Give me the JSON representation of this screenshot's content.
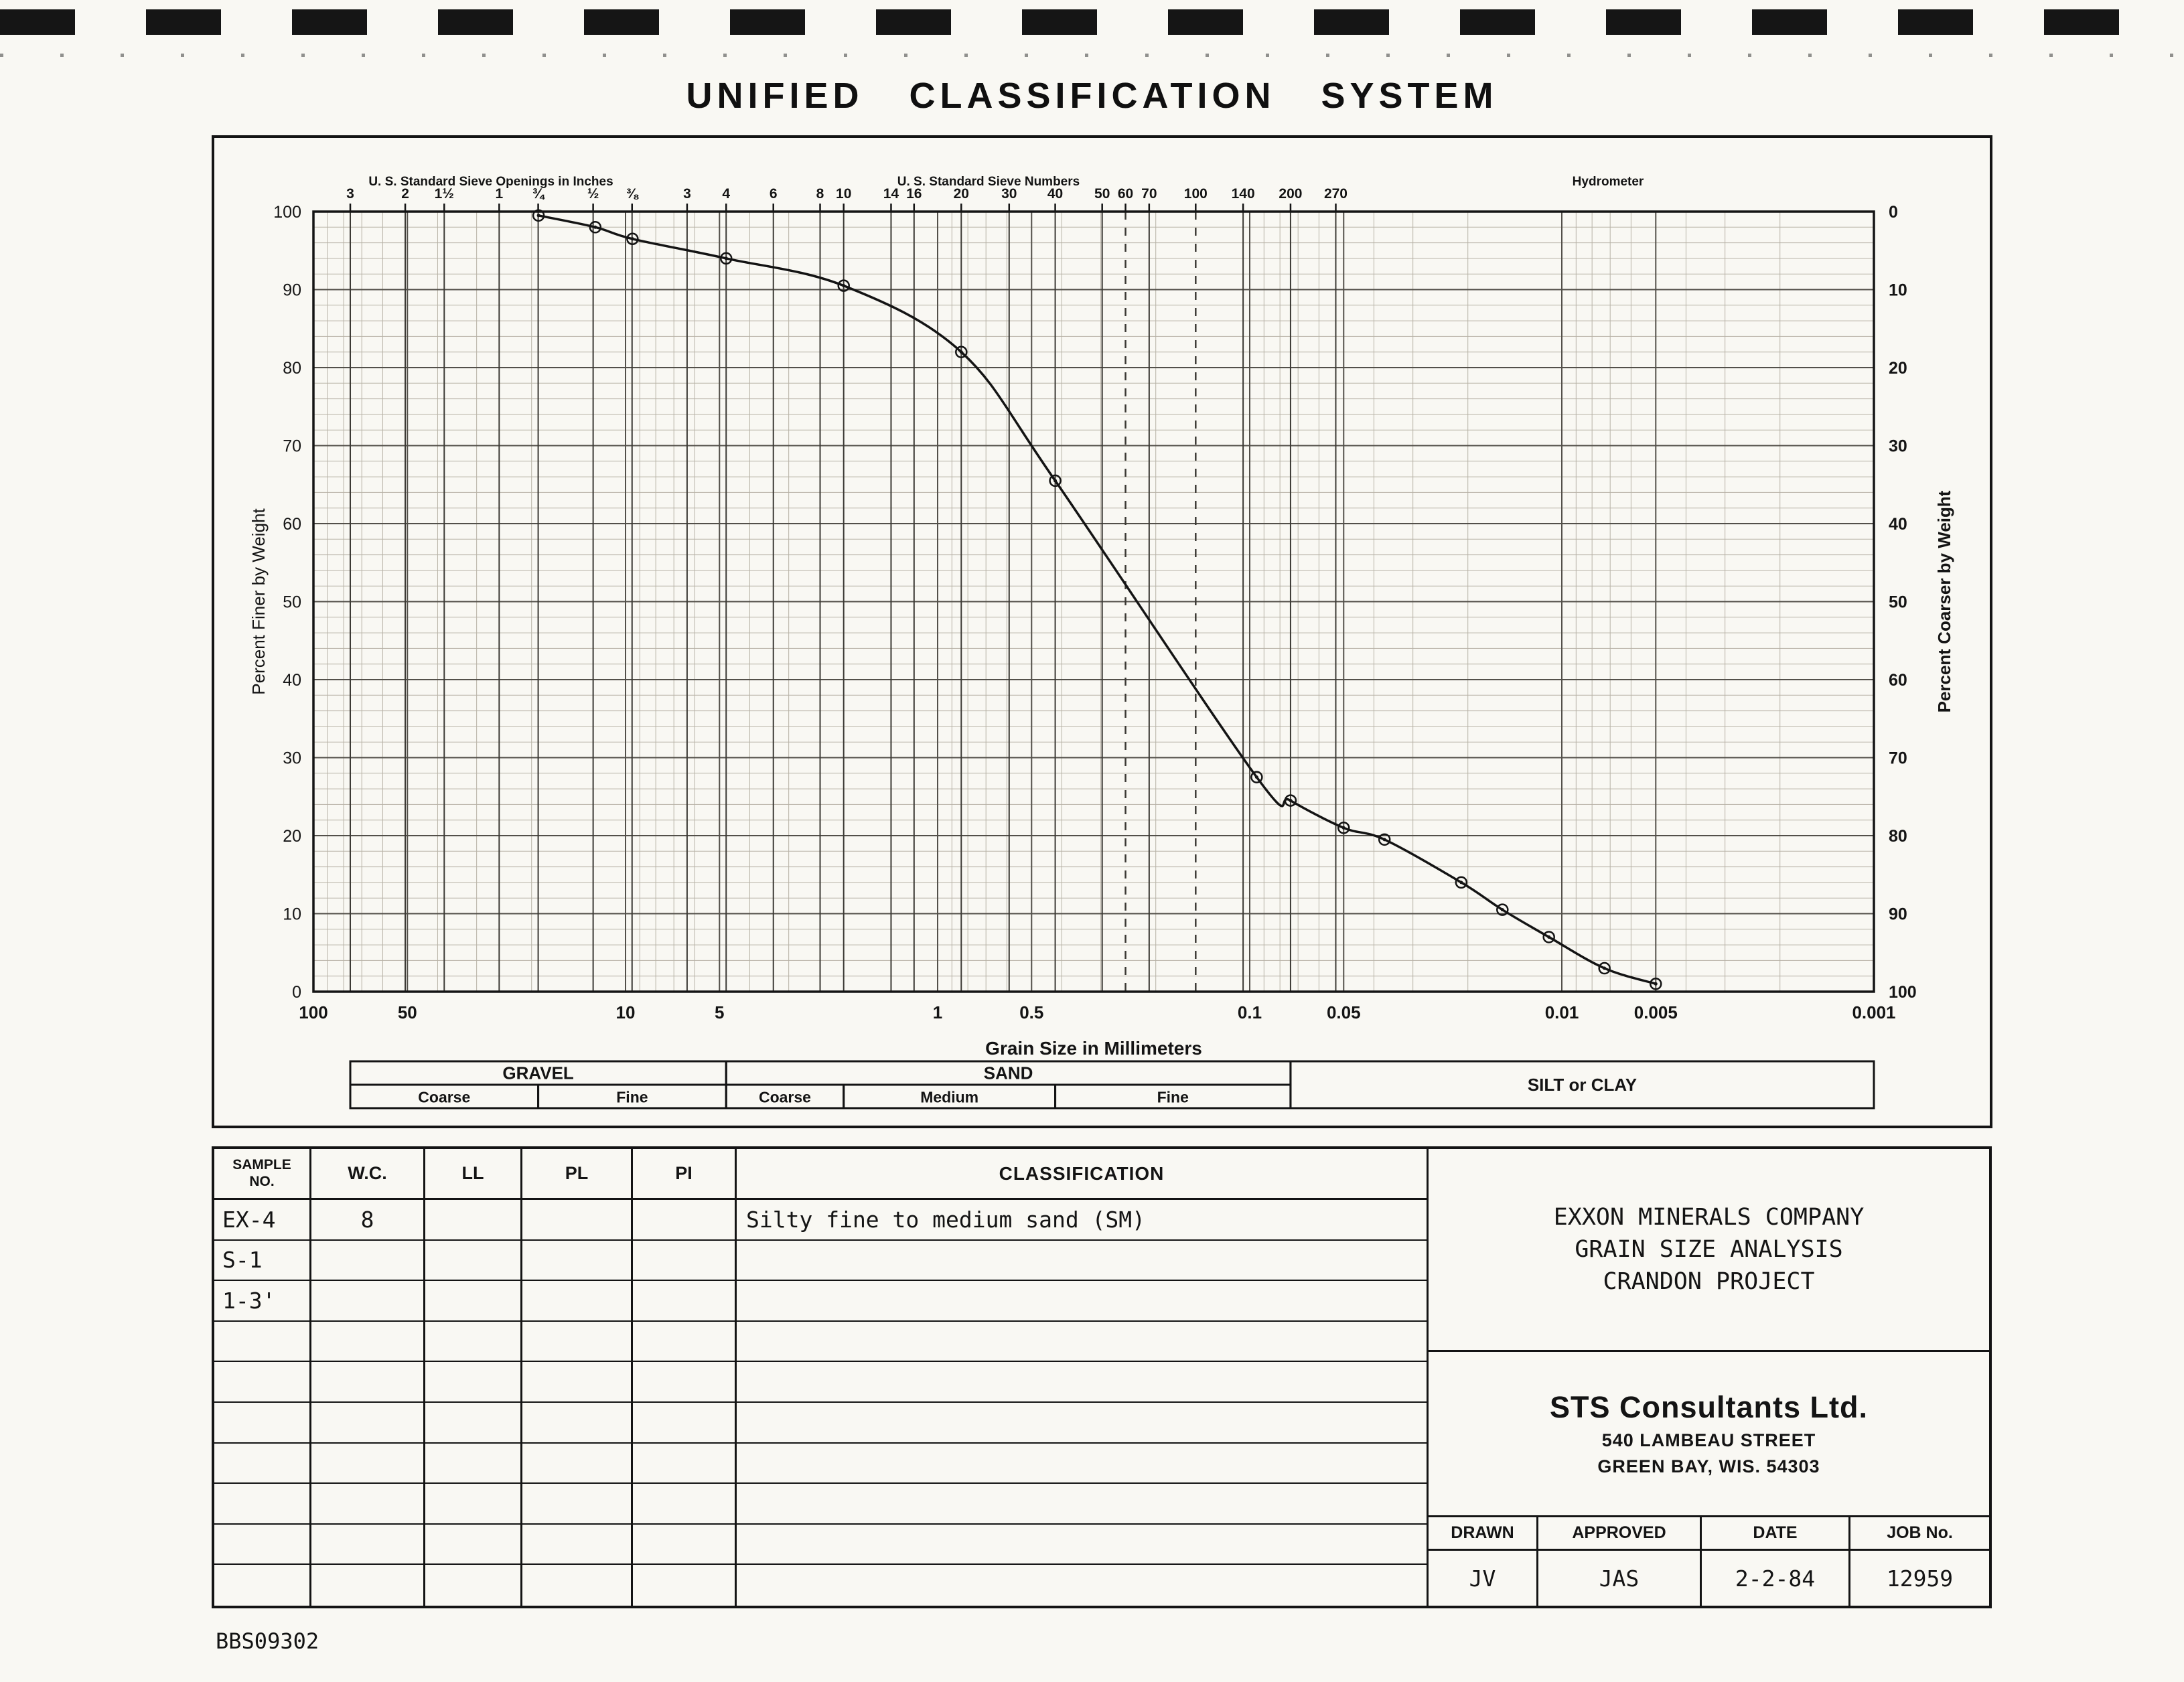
{
  "title": "UNIFIED CLASSIFICATION SYSTEM",
  "footer_code": "BBS09302",
  "chart_data": {
    "type": "line",
    "x_scale": "log",
    "xlim": [
      100,
      0.001
    ],
    "ylim": [
      0,
      100
    ],
    "grid": "on",
    "xlabel": "Grain Size in Millimeters",
    "ylabel_left": "Percent Finer by Weight",
    "ylabel_right": "Percent Coarser by Weight",
    "x_tick_values": [
      100,
      50,
      10,
      5,
      1,
      0.5,
      0.1,
      0.05,
      0.01,
      0.005,
      0.001
    ],
    "x_tick_labels": [
      "100",
      "50",
      "10",
      "5",
      "1",
      "0.5",
      "0.1",
      "0.05",
      "0.01",
      "0.005",
      "0.001"
    ],
    "y_ticks_left": [
      "100",
      "90",
      "80",
      "70",
      "60",
      "50",
      "40",
      "30",
      "20",
      "10",
      "0"
    ],
    "y_ticks_right": [
      "0",
      "10",
      "20",
      "30",
      "40",
      "50",
      "60",
      "70",
      "80",
      "90",
      "100"
    ],
    "top_axis": {
      "inches_title": "U. S. Standard Sieve Openings in Inches",
      "numbers_title": "U. S. Standard Sieve Numbers",
      "hydrometer_title": "Hydrometer",
      "ticks": [
        {
          "label": "3",
          "mm": 76.2
        },
        {
          "label": "2",
          "mm": 50.8
        },
        {
          "label": "1½",
          "mm": 38.1
        },
        {
          "label": "1",
          "mm": 25.4
        },
        {
          "label": "¾",
          "mm": 19.05
        },
        {
          "label": "½",
          "mm": 12.7
        },
        {
          "label": "⅜",
          "mm": 9.53
        },
        {
          "label": "3",
          "mm": 6.35
        },
        {
          "label": "4",
          "mm": 4.76
        },
        {
          "label": "6",
          "mm": 3.36
        },
        {
          "label": "8",
          "mm": 2.38
        },
        {
          "label": "10",
          "mm": 2.0
        },
        {
          "label": "14",
          "mm": 1.41
        },
        {
          "label": "16",
          "mm": 1.19
        },
        {
          "label": "20",
          "mm": 0.84
        },
        {
          "label": "30",
          "mm": 0.59
        },
        {
          "label": "40",
          "mm": 0.42
        },
        {
          "label": "50",
          "mm": 0.297
        },
        {
          "label": "60",
          "mm": 0.25
        },
        {
          "label": "70",
          "mm": 0.21
        },
        {
          "label": "100",
          "mm": 0.149
        },
        {
          "label": "140",
          "mm": 0.105
        },
        {
          "label": "200",
          "mm": 0.074
        },
        {
          "label": "270",
          "mm": 0.053
        }
      ],
      "dashed_mm": [
        0.25,
        0.149
      ]
    },
    "series": [
      {
        "name": "EX-4 S-1 1-3'",
        "points_mm_percent_finer": [
          [
            19,
            99.5
          ],
          [
            12.5,
            98
          ],
          [
            9.5,
            96.5
          ],
          [
            4.76,
            94
          ],
          [
            2.0,
            90.5
          ],
          [
            0.84,
            82
          ],
          [
            0.42,
            65.5
          ],
          [
            0.095,
            27.5
          ],
          [
            0.074,
            24.5
          ],
          [
            0.05,
            21
          ],
          [
            0.037,
            19.5
          ],
          [
            0.021,
            14
          ],
          [
            0.0155,
            10.5
          ],
          [
            0.011,
            7
          ],
          [
            0.0073,
            3
          ],
          [
            0.005,
            1
          ]
        ]
      }
    ],
    "size_bands": {
      "row1": [
        {
          "label": "GRAVEL",
          "from_mm": 76.2,
          "to_mm": 4.76
        },
        {
          "label": "SAND",
          "from_mm": 4.76,
          "to_mm": 0.074
        }
      ],
      "row2": [
        {
          "label": "Coarse",
          "from_mm": 76.2,
          "to_mm": 19.05
        },
        {
          "label": "Fine",
          "from_mm": 19.05,
          "to_mm": 4.76
        },
        {
          "label": "Coarse",
          "from_mm": 4.76,
          "to_mm": 2.0
        },
        {
          "label": "Medium",
          "from_mm": 2.0,
          "to_mm": 0.42
        },
        {
          "label": "Fine",
          "from_mm": 0.42,
          "to_mm": 0.074
        }
      ],
      "silt_clay": {
        "label": "SILT or CLAY",
        "from_mm": 0.074,
        "to_mm": 0.001
      }
    },
    "ink_color": "#141414",
    "grid_major_color": "#53504a",
    "grid_minor_color": "#b7b2a6"
  },
  "table": {
    "headers": [
      "SAMPLE NO.",
      "W.C.",
      "LL",
      "PL",
      "PI",
      "CLASSIFICATION"
    ],
    "rows": [
      {
        "sample": "EX-4",
        "wc": "8",
        "ll": "",
        "pl": "",
        "pi": "",
        "classification": "Silty fine to medium sand (SM)"
      },
      {
        "sample": "S-1",
        "wc": "",
        "ll": "",
        "pl": "",
        "pi": "",
        "classification": ""
      },
      {
        "sample": "1-3'",
        "wc": "",
        "ll": "",
        "pl": "",
        "pi": "",
        "classification": ""
      },
      {
        "sample": "",
        "wc": "",
        "ll": "",
        "pl": "",
        "pi": "",
        "classification": ""
      },
      {
        "sample": "",
        "wc": "",
        "ll": "",
        "pl": "",
        "pi": "",
        "classification": ""
      },
      {
        "sample": "",
        "wc": "",
        "ll": "",
        "pl": "",
        "pi": "",
        "classification": ""
      },
      {
        "sample": "",
        "wc": "",
        "ll": "",
        "pl": "",
        "pi": "",
        "classification": ""
      },
      {
        "sample": "",
        "wc": "",
        "ll": "",
        "pl": "",
        "pi": "",
        "classification": ""
      },
      {
        "sample": "",
        "wc": "",
        "ll": "",
        "pl": "",
        "pi": "",
        "classification": ""
      },
      {
        "sample": "",
        "wc": "",
        "ll": "",
        "pl": "",
        "pi": "",
        "classification": ""
      }
    ]
  },
  "info_panel": {
    "project_lines": [
      "EXXON MINERALS COMPANY",
      "GRAIN SIZE ANALYSIS",
      "CRANDON PROJECT"
    ],
    "firm_name": "STS Consultants Ltd.",
    "address_line1": "540 LAMBEAU STREET",
    "address_line2": "GREEN BAY, WIS. 54303",
    "credits": {
      "headers": [
        "DRAWN",
        "APPROVED",
        "DATE",
        "JOB No."
      ],
      "values": [
        "JV",
        "JAS",
        "2-2-84",
        "12959"
      ]
    }
  }
}
